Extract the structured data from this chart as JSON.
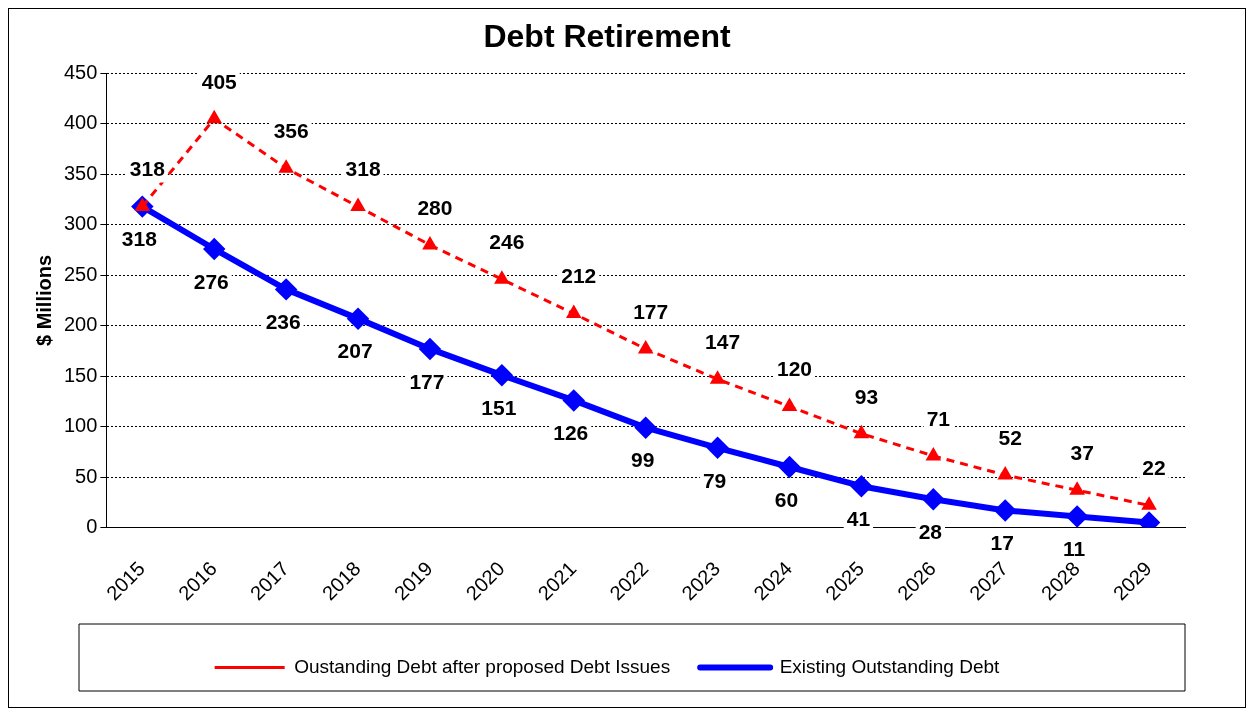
{
  "chart_data": {
    "type": "line",
    "title": "Debt Retirement",
    "ylabel": "$ Millions",
    "categories": [
      "2015",
      "2016",
      "2017",
      "2018",
      "2019",
      "2020",
      "2021",
      "2022",
      "2023",
      "2024",
      "2025",
      "2026",
      "2027",
      "2028",
      "2029"
    ],
    "series": [
      {
        "name": "Oustanding Debt after proposed Debt Issues",
        "color": "#ff0000",
        "line_style": "dashed",
        "marker": "triangle",
        "values": [
          318,
          405,
          356,
          318,
          280,
          246,
          212,
          177,
          147,
          120,
          93,
          71,
          52,
          37,
          22
        ],
        "value_labels": [
          "318",
          "405",
          "356",
          "318",
          "280",
          "246",
          "212",
          "177",
          "147",
          "120",
          "93",
          "71",
          "52",
          "37",
          "22"
        ]
      },
      {
        "name": "Existing Outstanding Debt",
        "color": "#0000ff",
        "line_style": "solid",
        "marker": "diamond",
        "values": [
          318,
          276,
          236,
          207,
          177,
          151,
          126,
          99,
          79,
          60,
          41,
          28,
          17,
          11,
          5
        ],
        "value_labels": [
          "318",
          "276",
          "236",
          "207",
          "177",
          "151",
          "126",
          "99",
          "79",
          "60",
          "41",
          "28",
          "17",
          "11",
          null
        ]
      }
    ],
    "ylim": [
      0,
      450
    ],
    "yticks": [
      0,
      50,
      100,
      150,
      200,
      250,
      300,
      350,
      400,
      450
    ],
    "grid": "y",
    "legend": "bottom"
  }
}
